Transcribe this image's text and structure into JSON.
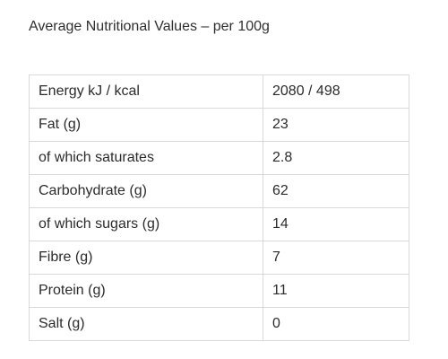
{
  "heading": "Average Nutritional Values – per 100g",
  "table": {
    "rows": [
      {
        "label": "Energy kJ / kcal",
        "value": "2080 / 498"
      },
      {
        "label": "Fat (g)",
        "value": "23"
      },
      {
        "label": "of which saturates",
        "value": "2.8"
      },
      {
        "label": "Carbohydrate (g)",
        "value": "62"
      },
      {
        "label": "of which sugars (g)",
        "value": "14"
      },
      {
        "label": "Fibre (g)",
        "value": "7"
      },
      {
        "label": "Protein (g)",
        "value": "11"
      },
      {
        "label": "Salt (g)",
        "value": "0"
      }
    ]
  }
}
